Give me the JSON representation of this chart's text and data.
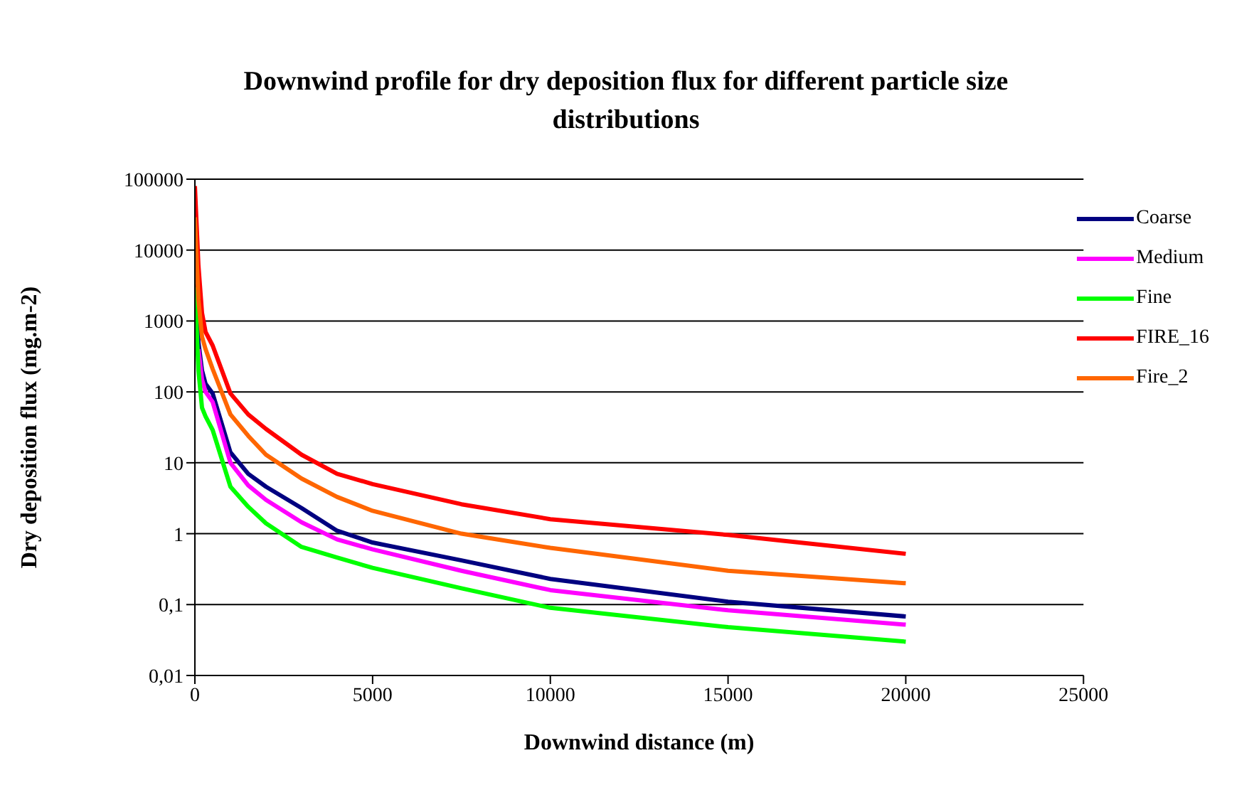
{
  "chart_data": {
    "type": "line",
    "title": "Downwind profile for dry deposition flux for different particle size distributions",
    "xlabel": "Downwind distance (m)",
    "ylabel": "Dry deposition flux (mg.m-2)",
    "x": [
      0,
      100,
      200,
      300,
      500,
      1000,
      1500,
      2000,
      3000,
      4000,
      5000,
      7500,
      10000,
      15000,
      20000
    ],
    "series": [
      {
        "name": "Coarse",
        "color": "#000080",
        "values": [
          8000,
          500,
          200,
          130,
          95,
          14,
          7,
          4.6,
          2.3,
          1.1,
          0.75,
          0.42,
          0.23,
          0.11,
          0.068
        ]
      },
      {
        "name": "Medium",
        "color": "#ff00ff",
        "values": [
          null,
          400,
          150,
          100,
          72,
          10,
          4.8,
          3,
          1.45,
          0.83,
          0.6,
          0.3,
          0.16,
          0.083,
          0.052
        ]
      },
      {
        "name": "Fine",
        "color": "#00ff00",
        "values": [
          3000,
          200,
          60,
          45,
          29,
          4.6,
          2.4,
          1.4,
          0.65,
          0.46,
          0.33,
          0.17,
          0.09,
          0.048,
          0.03
        ]
      },
      {
        "name": "FIRE_16",
        "color": "#ff0000",
        "values": [
          80000,
          6000,
          1300,
          700,
          450,
          95,
          48,
          30,
          13,
          7,
          5,
          2.6,
          1.6,
          0.96,
          0.52
        ]
      },
      {
        "name": "Fire_2",
        "color": "#ff6600",
        "values": [
          29000,
          2000,
          600,
          400,
          210,
          48,
          24,
          13,
          6,
          3.3,
          2.1,
          1,
          0.63,
          0.3,
          0.2
        ]
      }
    ],
    "log": "y",
    "xlim": [
      0,
      25000
    ],
    "xticks": [
      0,
      5000,
      10000,
      15000,
      20000,
      25000
    ],
    "ylim": [
      0.01,
      100000
    ],
    "yticks": [
      {
        "value": 0.01,
        "label": "0,01"
      },
      {
        "value": 0.1,
        "label": "0,1"
      },
      1,
      10,
      100,
      1000,
      10000,
      100000
    ],
    "grid": "y",
    "legend": "top right",
    "marker": "none",
    "line_style": "solid"
  }
}
